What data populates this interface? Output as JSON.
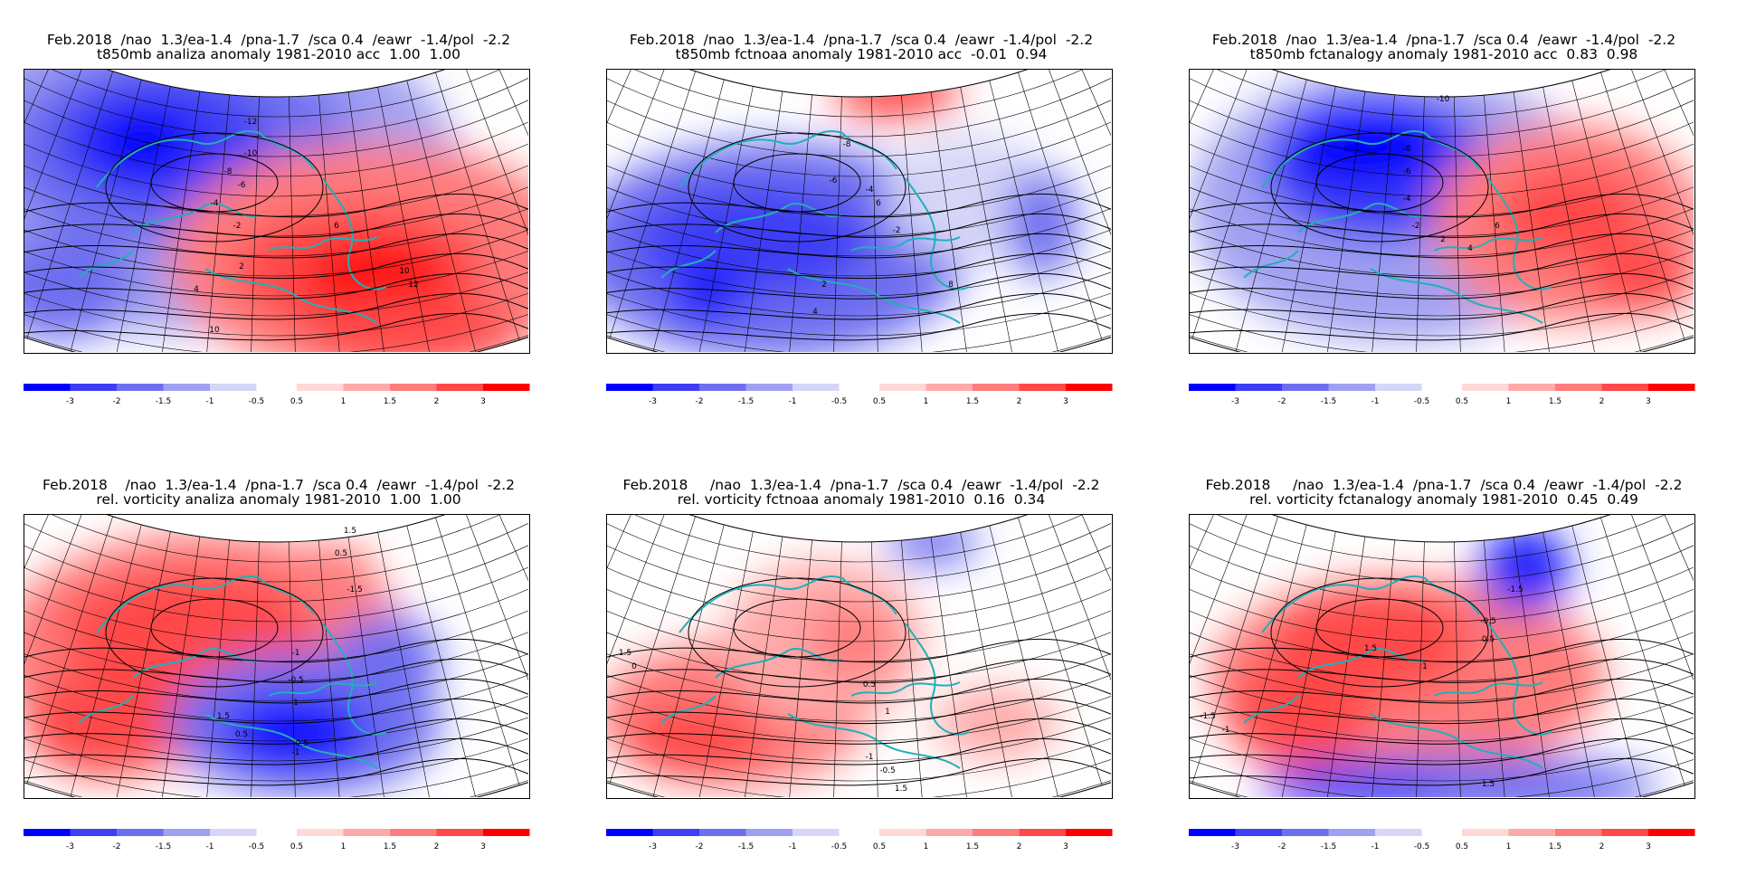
{
  "colorbar": {
    "neg_colors": [
      "#0000ff",
      "#3e3ef5",
      "#6e6ef0",
      "#a0a0f2",
      "#d6d6f8"
    ],
    "pos_colors": [
      "#ffd8d8",
      "#ffaaaa",
      "#ff7c7c",
      "#ff4848",
      "#ff0000"
    ],
    "neg_labels": [
      "-3",
      "-2",
      "-1.5",
      "-1",
      "-0.5"
    ],
    "pos_labels": [
      "0.5",
      "1",
      "1.5",
      "2",
      "3"
    ]
  },
  "coastline_color": "#20b0b8",
  "panels": [
    {
      "title_line1": "Feb.2018  /nao  1.3/ea-1.4  /pna-1.7  /sca 0.4  /eawr  -1.4/pol  -2.2",
      "title_line2": "t850mb analiza anomaly 1981-2010 acc  1.00  1.00",
      "contour_labels": [
        "-12",
        "-10",
        "-8",
        "-6",
        "-4",
        "-2",
        "2",
        "4",
        "6",
        "10",
        "12",
        "10"
      ]
    },
    {
      "title_line1": "Feb.2018  /nao  1.3/ea-1.4  /pna-1.7  /sca 0.4  /eawr  -1.4/pol  -2.2",
      "title_line2": "t850mb fctnoaa anomaly 1981-2010 acc  -0.01  0.94",
      "contour_labels": [
        "-8",
        "-6",
        "-4",
        "-2",
        "2",
        "4",
        "6",
        "8"
      ]
    },
    {
      "title_line1": "Feb.2018  /nao  1.3/ea-1.4  /pna-1.7  /sca 0.4  /eawr  -1.4/pol  -2.2",
      "title_line2": "t850mb fctanalogy anomaly 1981-2010 acc  0.83  0.98",
      "contour_labels": [
        "-10",
        "-8",
        "-6",
        "-4",
        "-2",
        "2",
        "4",
        "6"
      ]
    },
    {
      "title_line1": "Feb.2018    /nao  1.3/ea-1.4  /pna-1.7  /sca 0.4  /eawr  -1.4/pol  -2.2",
      "title_line2": "rel. vorticity analiza anomaly 1981-2010  1.00  1.00",
      "contour_labels": [
        "1.5",
        "0.5",
        "-1.5",
        "-1",
        "-0.5",
        "1",
        "1.5",
        "0.5",
        "-0.5",
        "-1"
      ]
    },
    {
      "title_line1": "Feb.2018     /nao  1.3/ea-1.4  /pna-1.7  /sca 0.4  /eawr  -1.4/pol  -2.2",
      "title_line2": "rel. vorticity fctnoaa anomaly 1981-2010  0.16  0.34",
      "contour_labels": [
        "1.5",
        "0",
        "0.5",
        "1",
        "1.5",
        "-0.5",
        "-1"
      ]
    },
    {
      "title_line1": "Feb.2018     /nao  1.3/ea-1.4  /pna-1.7  /sca 0.4  /eawr  -1.4/pol  -2.2",
      "title_line2": "rel. vorticity fctanalogy anomaly 1981-2010  0.45  0.49",
      "contour_labels": [
        "-1.5",
        "-1",
        "-0.5",
        "0.5",
        "1",
        "1.5",
        "-1.5",
        "1.5"
      ]
    }
  ]
}
